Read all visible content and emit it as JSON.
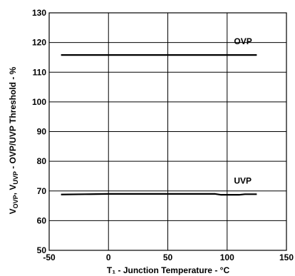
{
  "chart_data": {
    "type": "line",
    "xlim": [
      -50,
      150
    ],
    "ylim": [
      50,
      130
    ],
    "x_ticks": [
      -50,
      0,
      50,
      100,
      150
    ],
    "y_ticks": [
      50,
      60,
      70,
      80,
      90,
      100,
      110,
      120,
      130
    ],
    "x_tick_labels": [
      "-50",
      "0",
      "50",
      "100",
      "150"
    ],
    "y_tick_labels": [
      "50",
      "60",
      "70",
      "80",
      "90",
      "100",
      "110",
      "120",
      "130"
    ],
    "grid": true,
    "xlabel": "T₁ - Junction Temperature - °C",
    "ylabel": {
      "v1": "V",
      "v1_sub": "OVP",
      "sep": ", V",
      "v2_sub": "UVP",
      "rest": " - OVP/UVP Threshold - %"
    },
    "series": [
      {
        "name": "OVP",
        "x": [
          -40,
          0,
          50,
          100,
          125
        ],
        "y": [
          115.8,
          115.8,
          115.8,
          115.8,
          115.8
        ]
      },
      {
        "name": "UVP",
        "x": [
          -40,
          -20,
          0,
          25,
          50,
          75,
          90,
          95,
          100,
          105,
          110,
          115,
          125
        ],
        "y": [
          68.8,
          68.9,
          69.0,
          69.0,
          69.0,
          69.0,
          69.0,
          68.7,
          68.7,
          68.7,
          68.7,
          68.9,
          68.9
        ]
      }
    ],
    "colors": {
      "line": "#000000",
      "grid": "#000000",
      "background": "#ffffff"
    }
  }
}
